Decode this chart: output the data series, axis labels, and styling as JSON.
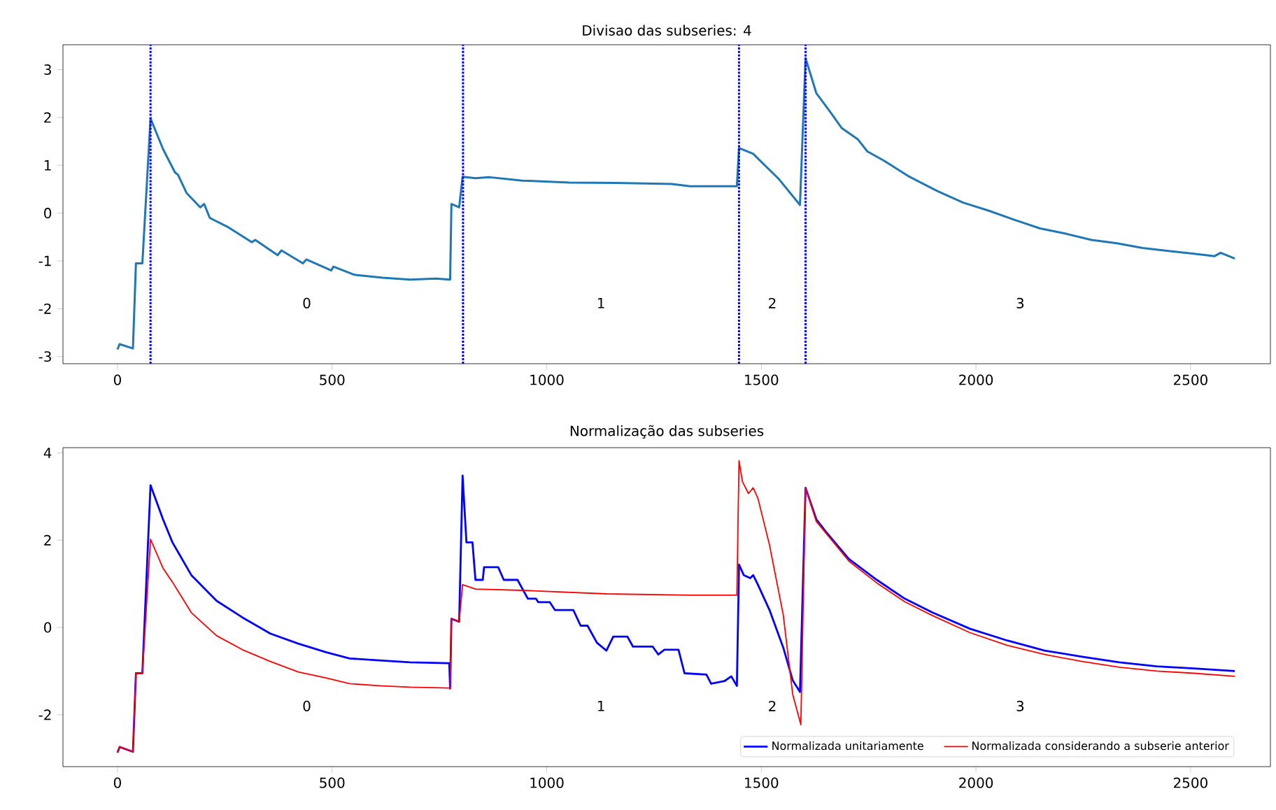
{
  "chart_data": [
    {
      "type": "line",
      "title": "Divisao das subseries: 4",
      "xlim": [
        -127,
        2686
      ],
      "ylim": [
        -3.15,
        3.52
      ],
      "xticks": [
        0,
        500,
        1000,
        1500,
        2000,
        2500
      ],
      "yticks": [
        -3,
        -2,
        -1,
        0,
        1,
        2,
        3
      ],
      "grid": false,
      "legend": false,
      "marker": "none",
      "line_style": "solid",
      "series": [
        {
          "color": "#1f77b4",
          "x": [
            0,
            5,
            36,
            43,
            58,
            77,
            106,
            134,
            141,
            161,
            193,
            202,
            215,
            259,
            313,
            321,
            373,
            382,
            432,
            440,
            498,
            503,
            552,
            617,
            682,
            742,
            775,
            778,
            796,
            804,
            834,
            867,
            943,
            1052,
            1160,
            1291,
            1334,
            1443,
            1448,
            1481,
            1508,
            1541,
            1590,
            1603,
            1628,
            1660,
            1687,
            1725,
            1747,
            1785,
            1845,
            1910,
            1970,
            2030,
            2089,
            2149,
            2209,
            2269,
            2328,
            2388,
            2448,
            2508,
            2556,
            2570,
            2603
          ],
          "values": [
            -2.85,
            -2.74,
            -2.83,
            -1.05,
            -1.05,
            1.98,
            1.34,
            0.85,
            0.8,
            0.42,
            0.12,
            0.19,
            -0.1,
            -0.3,
            -0.61,
            -0.56,
            -0.88,
            -0.78,
            -1.05,
            -0.97,
            -1.2,
            -1.12,
            -1.29,
            -1.35,
            -1.39,
            -1.37,
            -1.39,
            0.19,
            0.12,
            0.76,
            0.73,
            0.75,
            0.68,
            0.64,
            0.63,
            0.61,
            0.56,
            0.56,
            1.36,
            1.24,
            1.0,
            0.71,
            0.17,
            3.24,
            2.51,
            2.12,
            1.78,
            1.54,
            1.29,
            1.1,
            0.76,
            0.46,
            0.22,
            0.05,
            -0.14,
            -0.32,
            -0.43,
            -0.56,
            -0.63,
            -0.73,
            -0.79,
            -0.85,
            -0.9,
            -0.83,
            -0.95
          ]
        }
      ],
      "ref_lines": [
        {
          "axis": "x",
          "value": 77,
          "color": "#0000ff",
          "line_style": "dotted"
        },
        {
          "axis": "x",
          "value": 805,
          "color": "#0000ff",
          "line_style": "dotted"
        },
        {
          "axis": "x",
          "value": 1448,
          "color": "#0000ff",
          "line_style": "dotted"
        },
        {
          "axis": "x",
          "value": 1603,
          "color": "#0000ff",
          "line_style": "dotted"
        }
      ],
      "annotations": [
        "0",
        "1",
        "2",
        "3"
      ]
    },
    {
      "type": "line",
      "title": "Normalização das subseries",
      "xlim": [
        -127,
        2686
      ],
      "ylim": [
        -3.19,
        4.12
      ],
      "xticks": [
        0,
        500,
        1000,
        1500,
        2000,
        2500
      ],
      "yticks": [
        -2,
        0,
        2,
        4
      ],
      "grid": false,
      "legend": "bottom right",
      "marker": "none",
      "line_style": "solid",
      "series": [
        {
          "name": "Normalizada unitariamente",
          "color": "#0000ff",
          "x": [
            0,
            5,
            36,
            43,
            58,
            77,
            106,
            128,
            172,
            231,
            291,
            356,
            421,
            487,
            541,
            617,
            682,
            773,
            775,
            778,
            796,
            804,
            813,
            827,
            834,
            851,
            854,
            887,
            900,
            932,
            956,
            975,
            980,
            1007,
            1019,
            1062,
            1079,
            1095,
            1117,
            1139,
            1155,
            1188,
            1201,
            1247,
            1260,
            1274,
            1307,
            1321,
            1372,
            1383,
            1414,
            1430,
            1443,
            1448,
            1459,
            1474,
            1481,
            1492,
            1519,
            1551,
            1573,
            1590,
            1603,
            1628,
            1649,
            1704,
            1769,
            1834,
            1899,
            1986,
            2073,
            2160,
            2247,
            2334,
            2421,
            2508,
            2603
          ],
          "values": [
            -2.87,
            -2.74,
            -2.85,
            -1.05,
            -1.05,
            3.26,
            2.48,
            1.95,
            1.2,
            0.61,
            0.23,
            -0.14,
            -0.37,
            -0.57,
            -0.71,
            -0.76,
            -0.8,
            -0.82,
            -1.4,
            0.2,
            0.13,
            3.48,
            1.95,
            1.95,
            1.09,
            1.09,
            1.38,
            1.38,
            1.09,
            1.09,
            0.66,
            0.66,
            0.58,
            0.58,
            0.4,
            0.4,
            0.04,
            0.04,
            -0.35,
            -0.53,
            -0.21,
            -0.21,
            -0.44,
            -0.44,
            -0.62,
            -0.51,
            -0.51,
            -1.05,
            -1.08,
            -1.29,
            -1.23,
            -1.12,
            -1.34,
            1.44,
            1.2,
            1.13,
            1.2,
            0.98,
            0.4,
            -0.46,
            -1.21,
            -1.48,
            3.2,
            2.48,
            2.21,
            1.57,
            1.09,
            0.66,
            0.34,
            -0.03,
            -0.3,
            -0.53,
            -0.67,
            -0.8,
            -0.89,
            -0.94,
            -1.0
          ]
        },
        {
          "name": "Normalizada considerando a subserie anterior",
          "color": "#ff0000",
          "x": [
            0,
            5,
            36,
            43,
            58,
            77,
            106,
            128,
            172,
            231,
            291,
            356,
            421,
            487,
            541,
            617,
            682,
            773,
            775,
            778,
            796,
            804,
            834,
            943,
            1139,
            1334,
            1443,
            1448,
            1456,
            1470,
            1481,
            1492,
            1519,
            1551,
            1573,
            1592,
            1603,
            1628,
            1704,
            1769,
            1834,
            1899,
            1986,
            2073,
            2160,
            2247,
            2334,
            2421,
            2508,
            2603
          ],
          "values": [
            -2.87,
            -2.74,
            -2.85,
            -1.05,
            -1.05,
            2.02,
            1.36,
            1.04,
            0.34,
            -0.19,
            -0.51,
            -0.78,
            -1.02,
            -1.16,
            -1.29,
            -1.34,
            -1.37,
            -1.39,
            -1.4,
            0.2,
            0.13,
            0.98,
            0.88,
            0.85,
            0.77,
            0.74,
            0.74,
            3.82,
            3.34,
            3.07,
            3.2,
            2.96,
            1.89,
            0.29,
            -1.53,
            -2.23,
            3.2,
            2.43,
            1.52,
            1.02,
            0.59,
            0.27,
            -0.12,
            -0.41,
            -0.62,
            -0.78,
            -0.91,
            -1.0,
            -1.05,
            -1.12
          ]
        }
      ],
      "annotations": [
        "0",
        "1",
        "2",
        "3"
      ]
    }
  ]
}
